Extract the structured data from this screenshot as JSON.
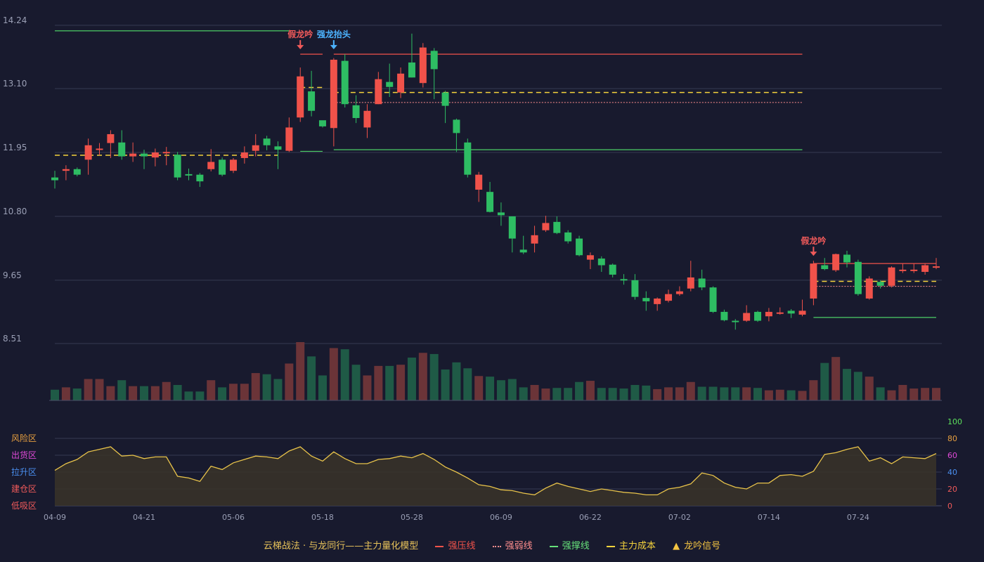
{
  "legend": {
    "title": "云梯战法 · 与龙同行——主力量化模型",
    "items": [
      {
        "label": "强压线",
        "color": "#f0524a"
      },
      {
        "label": "强弱线",
        "color": "#ff8e8e"
      },
      {
        "label": "强撑线",
        "color": "#66e07a"
      },
      {
        "label": "主力成本",
        "color": "#f5d33c"
      },
      {
        "label": "龙吟信号",
        "color": "#f5c542"
      }
    ]
  },
  "colors": {
    "up": "#f0524a",
    "down": "#2ebd63",
    "vol_up": "#6b3438",
    "vol_down": "#1f5a46",
    "grid": "#363a52",
    "axis_text": "#9a9fb5",
    "osc_line": "#e8c34a"
  },
  "chart_data": {
    "type": "candlestick",
    "price_axis": {
      "ticks": [
        "14.24",
        "13.10",
        "11.95",
        "10.80",
        "9.65",
        "8.51"
      ],
      "range": [
        8.51,
        14.24
      ]
    },
    "date_labels": [
      {
        "i": 0,
        "label": "04-09"
      },
      {
        "i": 8,
        "label": "04-21"
      },
      {
        "i": 16,
        "label": "05-06"
      },
      {
        "i": 24,
        "label": "05-18"
      },
      {
        "i": 32,
        "label": "05-28"
      },
      {
        "i": 40,
        "label": "06-09"
      },
      {
        "i": 48,
        "label": "06-22"
      },
      {
        "i": 56,
        "label": "07-02"
      },
      {
        "i": 64,
        "label": "07-14"
      },
      {
        "i": 72,
        "label": "07-24"
      }
    ],
    "candles": [
      [
        11.5,
        11.45,
        11.62,
        11.3
      ],
      [
        11.62,
        11.65,
        11.72,
        11.45
      ],
      [
        11.65,
        11.55,
        11.68,
        11.52
      ],
      [
        11.82,
        12.08,
        12.2,
        11.55
      ],
      [
        12.0,
        12.02,
        12.12,
        11.9
      ],
      [
        12.12,
        12.28,
        12.35,
        11.85
      ],
      [
        12.13,
        11.88,
        12.35,
        11.82
      ],
      [
        11.88,
        11.93,
        12.13,
        11.78
      ],
      [
        11.93,
        11.88,
        12.0,
        11.65
      ],
      [
        11.86,
        11.95,
        12.02,
        11.7
      ],
      [
        11.95,
        11.96,
        12.05,
        11.72
      ],
      [
        11.91,
        11.5,
        11.96,
        11.45
      ],
      [
        11.56,
        11.55,
        11.66,
        11.45
      ],
      [
        11.55,
        11.43,
        11.58,
        11.33
      ],
      [
        11.65,
        11.78,
        12.01,
        11.61
      ],
      [
        11.82,
        11.55,
        11.86,
        11.52
      ],
      [
        11.62,
        11.82,
        11.85,
        11.58
      ],
      [
        11.85,
        11.95,
        12.06,
        11.75
      ],
      [
        11.98,
        12.08,
        12.28,
        11.88
      ],
      [
        12.2,
        12.08,
        12.25,
        11.99
      ],
      [
        12.06,
        12.0,
        12.15,
        11.65
      ],
      [
        11.98,
        12.4,
        12.58,
        11.96
      ],
      [
        12.58,
        13.32,
        13.48,
        12.5
      ],
      [
        13.05,
        12.7,
        13.42,
        12.6
      ],
      [
        12.53,
        12.42,
        12.52,
        12.4
      ],
      [
        12.39,
        13.62,
        13.65,
        12.06
      ],
      [
        13.6,
        12.82,
        13.72,
        12.76
      ],
      [
        12.8,
        12.57,
        12.98,
        12.48
      ],
      [
        12.4,
        12.7,
        12.82,
        12.21
      ],
      [
        12.82,
        13.27,
        13.4,
        12.82
      ],
      [
        13.22,
        13.13,
        13.55,
        12.95
      ],
      [
        13.03,
        13.37,
        13.48,
        12.93
      ],
      [
        13.57,
        13.3,
        14.09,
        13.3
      ],
      [
        13.2,
        13.84,
        13.92,
        13.12
      ],
      [
        13.78,
        13.45,
        13.83,
        12.91
      ],
      [
        13.03,
        12.79,
        13.06,
        12.48
      ],
      [
        12.54,
        12.3,
        12.56,
        11.96
      ],
      [
        12.13,
        11.55,
        12.2,
        11.5
      ],
      [
        11.28,
        11.55,
        11.6,
        11.06
      ],
      [
        11.24,
        10.88,
        11.42,
        10.87
      ],
      [
        10.87,
        10.82,
        11.05,
        10.63
      ],
      [
        10.8,
        10.4,
        10.8,
        10.15
      ],
      [
        10.2,
        10.15,
        10.45,
        10.12
      ],
      [
        10.31,
        10.46,
        10.63,
        10.15
      ],
      [
        10.55,
        10.68,
        10.81,
        10.52
      ],
      [
        10.7,
        10.5,
        10.8,
        10.48
      ],
      [
        10.51,
        10.35,
        10.55,
        10.31
      ],
      [
        10.4,
        10.1,
        10.45,
        10.08
      ],
      [
        10.02,
        10.1,
        10.15,
        9.85
      ],
      [
        10.04,
        9.92,
        10.08,
        9.8
      ],
      [
        9.93,
        9.75,
        9.95,
        9.7
      ],
      [
        9.67,
        9.65,
        9.76,
        9.57
      ],
      [
        9.65,
        9.35,
        9.76,
        9.3
      ],
      [
        9.33,
        9.27,
        9.45,
        9.1
      ],
      [
        9.22,
        9.32,
        9.34,
        9.1
      ],
      [
        9.28,
        9.4,
        9.48,
        9.25
      ],
      [
        9.4,
        9.45,
        9.54,
        9.37
      ],
      [
        9.5,
        9.7,
        10.0,
        9.45
      ],
      [
        9.68,
        9.52,
        9.84,
        9.47
      ],
      [
        9.52,
        9.08,
        9.54,
        9.06
      ],
      [
        9.08,
        8.93,
        9.12,
        8.91
      ],
      [
        8.92,
        8.9,
        8.95,
        8.76
      ],
      [
        8.92,
        9.06,
        9.2,
        8.9
      ],
      [
        9.08,
        8.92,
        9.1,
        8.9
      ],
      [
        9.0,
        9.08,
        9.15,
        8.91
      ],
      [
        9.07,
        9.07,
        9.16,
        9.03
      ],
      [
        9.1,
        9.05,
        9.13,
        8.97
      ],
      [
        9.03,
        9.1,
        9.3,
        9.0
      ],
      [
        9.32,
        9.95,
        10.0,
        9.2
      ],
      [
        9.92,
        9.85,
        10.05,
        9.83
      ],
      [
        9.83,
        10.12,
        10.13,
        9.8
      ],
      [
        10.11,
        9.97,
        10.18,
        9.88
      ],
      [
        9.98,
        9.4,
        10.02,
        9.37
      ],
      [
        9.32,
        9.68,
        9.72,
        9.3
      ],
      [
        9.62,
        9.55,
        9.65,
        9.5
      ],
      [
        9.55,
        9.88,
        9.9,
        9.52
      ],
      [
        9.84,
        9.84,
        9.95,
        9.78
      ],
      [
        9.84,
        9.84,
        9.95,
        9.78
      ],
      [
        9.8,
        9.92,
        9.95,
        9.75
      ],
      [
        9.9,
        9.9,
        10.05,
        9.85
      ]
    ],
    "volume": [
      18,
      22,
      20,
      36,
      36,
      24,
      34,
      24,
      24,
      24,
      31,
      26,
      15,
      15,
      34,
      22,
      28,
      28,
      46,
      44,
      36,
      62,
      98,
      74,
      42,
      88,
      86,
      60,
      42,
      58,
      58,
      60,
      72,
      80,
      78,
      52,
      64,
      54,
      41,
      40,
      34,
      36,
      22,
      26,
      20,
      21,
      21,
      31,
      33,
      21,
      21,
      20,
      26,
      25,
      19,
      22,
      22,
      31,
      23,
      23,
      22,
      22,
      22,
      21,
      17,
      18,
      17,
      16,
      34,
      63,
      73,
      53,
      48,
      40,
      22,
      17,
      26,
      20,
      21,
      21
    ],
    "oscillator": {
      "zones": [
        "风险区",
        "出货区",
        "拉升区",
        "建仓区",
        "低吸区"
      ],
      "ticks": [
        "100",
        "80",
        "60",
        "40",
        "20",
        "0"
      ],
      "range": [
        0,
        100
      ],
      "values": [
        42,
        50,
        55,
        64,
        67,
        70,
        59,
        60,
        56,
        58,
        58,
        35,
        33,
        29,
        47,
        43,
        51,
        55,
        59,
        58,
        56,
        65,
        70,
        59,
        53,
        64,
        56,
        50,
        50,
        55,
        56,
        59,
        57,
        62,
        55,
        46,
        40,
        33,
        25,
        23,
        19,
        18,
        15,
        13,
        21,
        27,
        23,
        20,
        17,
        20,
        18,
        16,
        15,
        13,
        13,
        20,
        22,
        26,
        39,
        36,
        27,
        22,
        20,
        27,
        27,
        36,
        37,
        35,
        41,
        61,
        63,
        67,
        70,
        53,
        57,
        50,
        58,
        57,
        56,
        62
      ]
    },
    "lines": [
      {
        "kind": "support",
        "from": 0,
        "to": 21,
        "value": 14.14
      },
      {
        "kind": "cost",
        "from": 0,
        "to": 20,
        "value": 11.9
      },
      {
        "kind": "support",
        "from": 22,
        "to": 24,
        "value": 11.97
      },
      {
        "kind": "cost",
        "from": 22,
        "to": 24,
        "value": 13.12
      },
      {
        "kind": "pressure",
        "from": 22,
        "to": 24,
        "value": 13.72
      },
      {
        "kind": "pressure",
        "from": 25,
        "to": 67,
        "value": 13.72
      },
      {
        "kind": "cost",
        "from": 25,
        "to": 67,
        "value": 13.03
      },
      {
        "kind": "weak",
        "from": 25,
        "to": 67,
        "value": 12.85
      },
      {
        "kind": "support",
        "from": 25,
        "to": 67,
        "value": 12.0
      },
      {
        "kind": "pressure",
        "from": 68,
        "to": 79,
        "value": 9.95
      },
      {
        "kind": "cost",
        "from": 68,
        "to": 79,
        "value": 9.63
      },
      {
        "kind": "weak",
        "from": 68,
        "to": 79,
        "value": 9.54
      },
      {
        "kind": "support",
        "from": 68,
        "to": 79,
        "value": 8.98
      }
    ],
    "signals": [
      {
        "i": 22,
        "label": "假龙吟",
        "color": "#f05a5a",
        "price": 13.72
      },
      {
        "i": 25,
        "label": "强龙抬头",
        "color": "#4db4ff",
        "price": 13.72
      },
      {
        "i": 68,
        "label": "假龙吟",
        "color": "#f05a5a",
        "price": 10.0
      }
    ]
  }
}
